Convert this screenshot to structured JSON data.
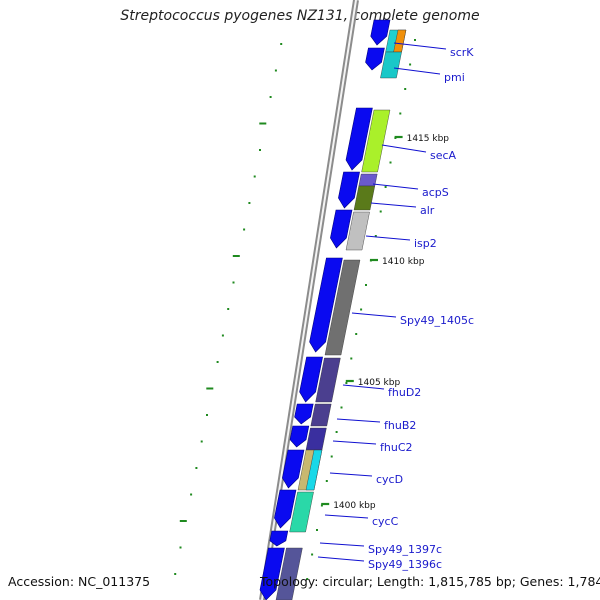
{
  "title": "Streptococcus pyogenes NZ131, complete genome",
  "accession": "Accession: NC_011375",
  "summary": "Topology: circular; Length: 1,815,785 bp; Genes: 1,784",
  "colors": {
    "backbone": "#8c8c8c",
    "forward_gene": "#0a0af0",
    "label": "#1a1acc",
    "leader": "#1010d0",
    "tick": "#1f8a1f"
  },
  "kbp_labels": [
    "1415 kbp",
    "1410 kbp",
    "1405 kbp",
    "1400 kbp"
  ],
  "gene_labels": [
    "scrK",
    "pmi",
    "secA",
    "acpS",
    "alr",
    "isp2",
    "Spy49_1405c",
    "fhuD2",
    "fhuB2",
    "fhuC2",
    "cycD",
    "cycC",
    "Spy49_1397c",
    "Spy49_1396c"
  ]
}
